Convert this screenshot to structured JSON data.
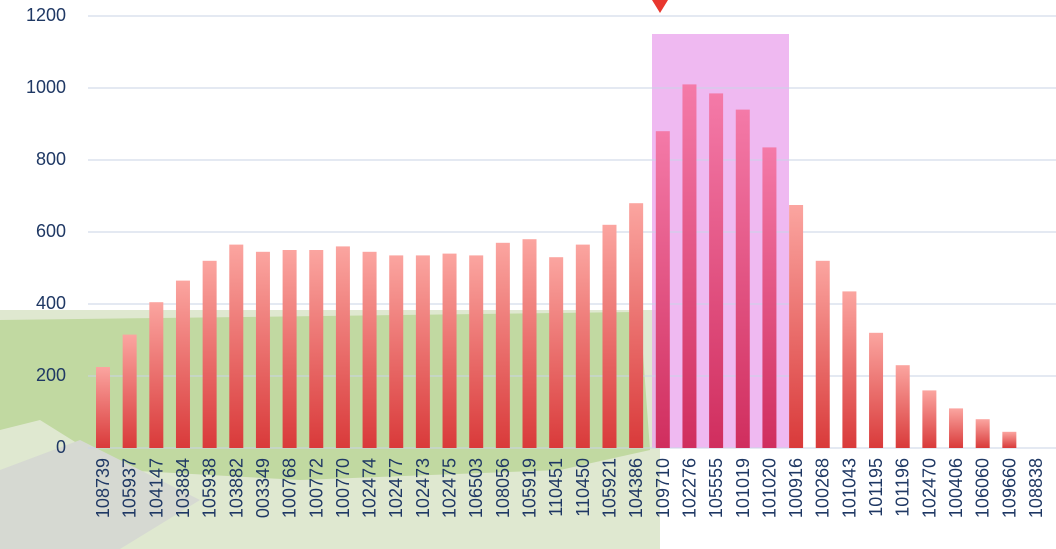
{
  "chart_data": {
    "type": "bar",
    "categories": [
      "108739",
      "105937",
      "104147",
      "103884",
      "105938",
      "103882",
      "003349",
      "100768",
      "100772",
      "100770",
      "102474",
      "102477",
      "102473",
      "102475",
      "106503",
      "108056",
      "105919",
      "110451",
      "110450",
      "105921",
      "104386",
      "109710",
      "102276",
      "105555",
      "101019",
      "101020",
      "100916",
      "100268",
      "101043",
      "101195",
      "101196",
      "102470",
      "100406",
      "106060",
      "109660",
      "108838"
    ],
    "values": [
      225,
      315,
      405,
      465,
      520,
      565,
      545,
      550,
      550,
      560,
      545,
      535,
      535,
      540,
      535,
      570,
      580,
      530,
      565,
      620,
      680,
      880,
      1010,
      985,
      940,
      835,
      675,
      520,
      435,
      320,
      230,
      160,
      110,
      80,
      45,
      null
    ],
    "color": "#e84c4c",
    "ylim": [
      0,
      1200
    ],
    "yticks": [
      0,
      200,
      400,
      600,
      800,
      1000,
      1200
    ],
    "grid": true
  }
}
